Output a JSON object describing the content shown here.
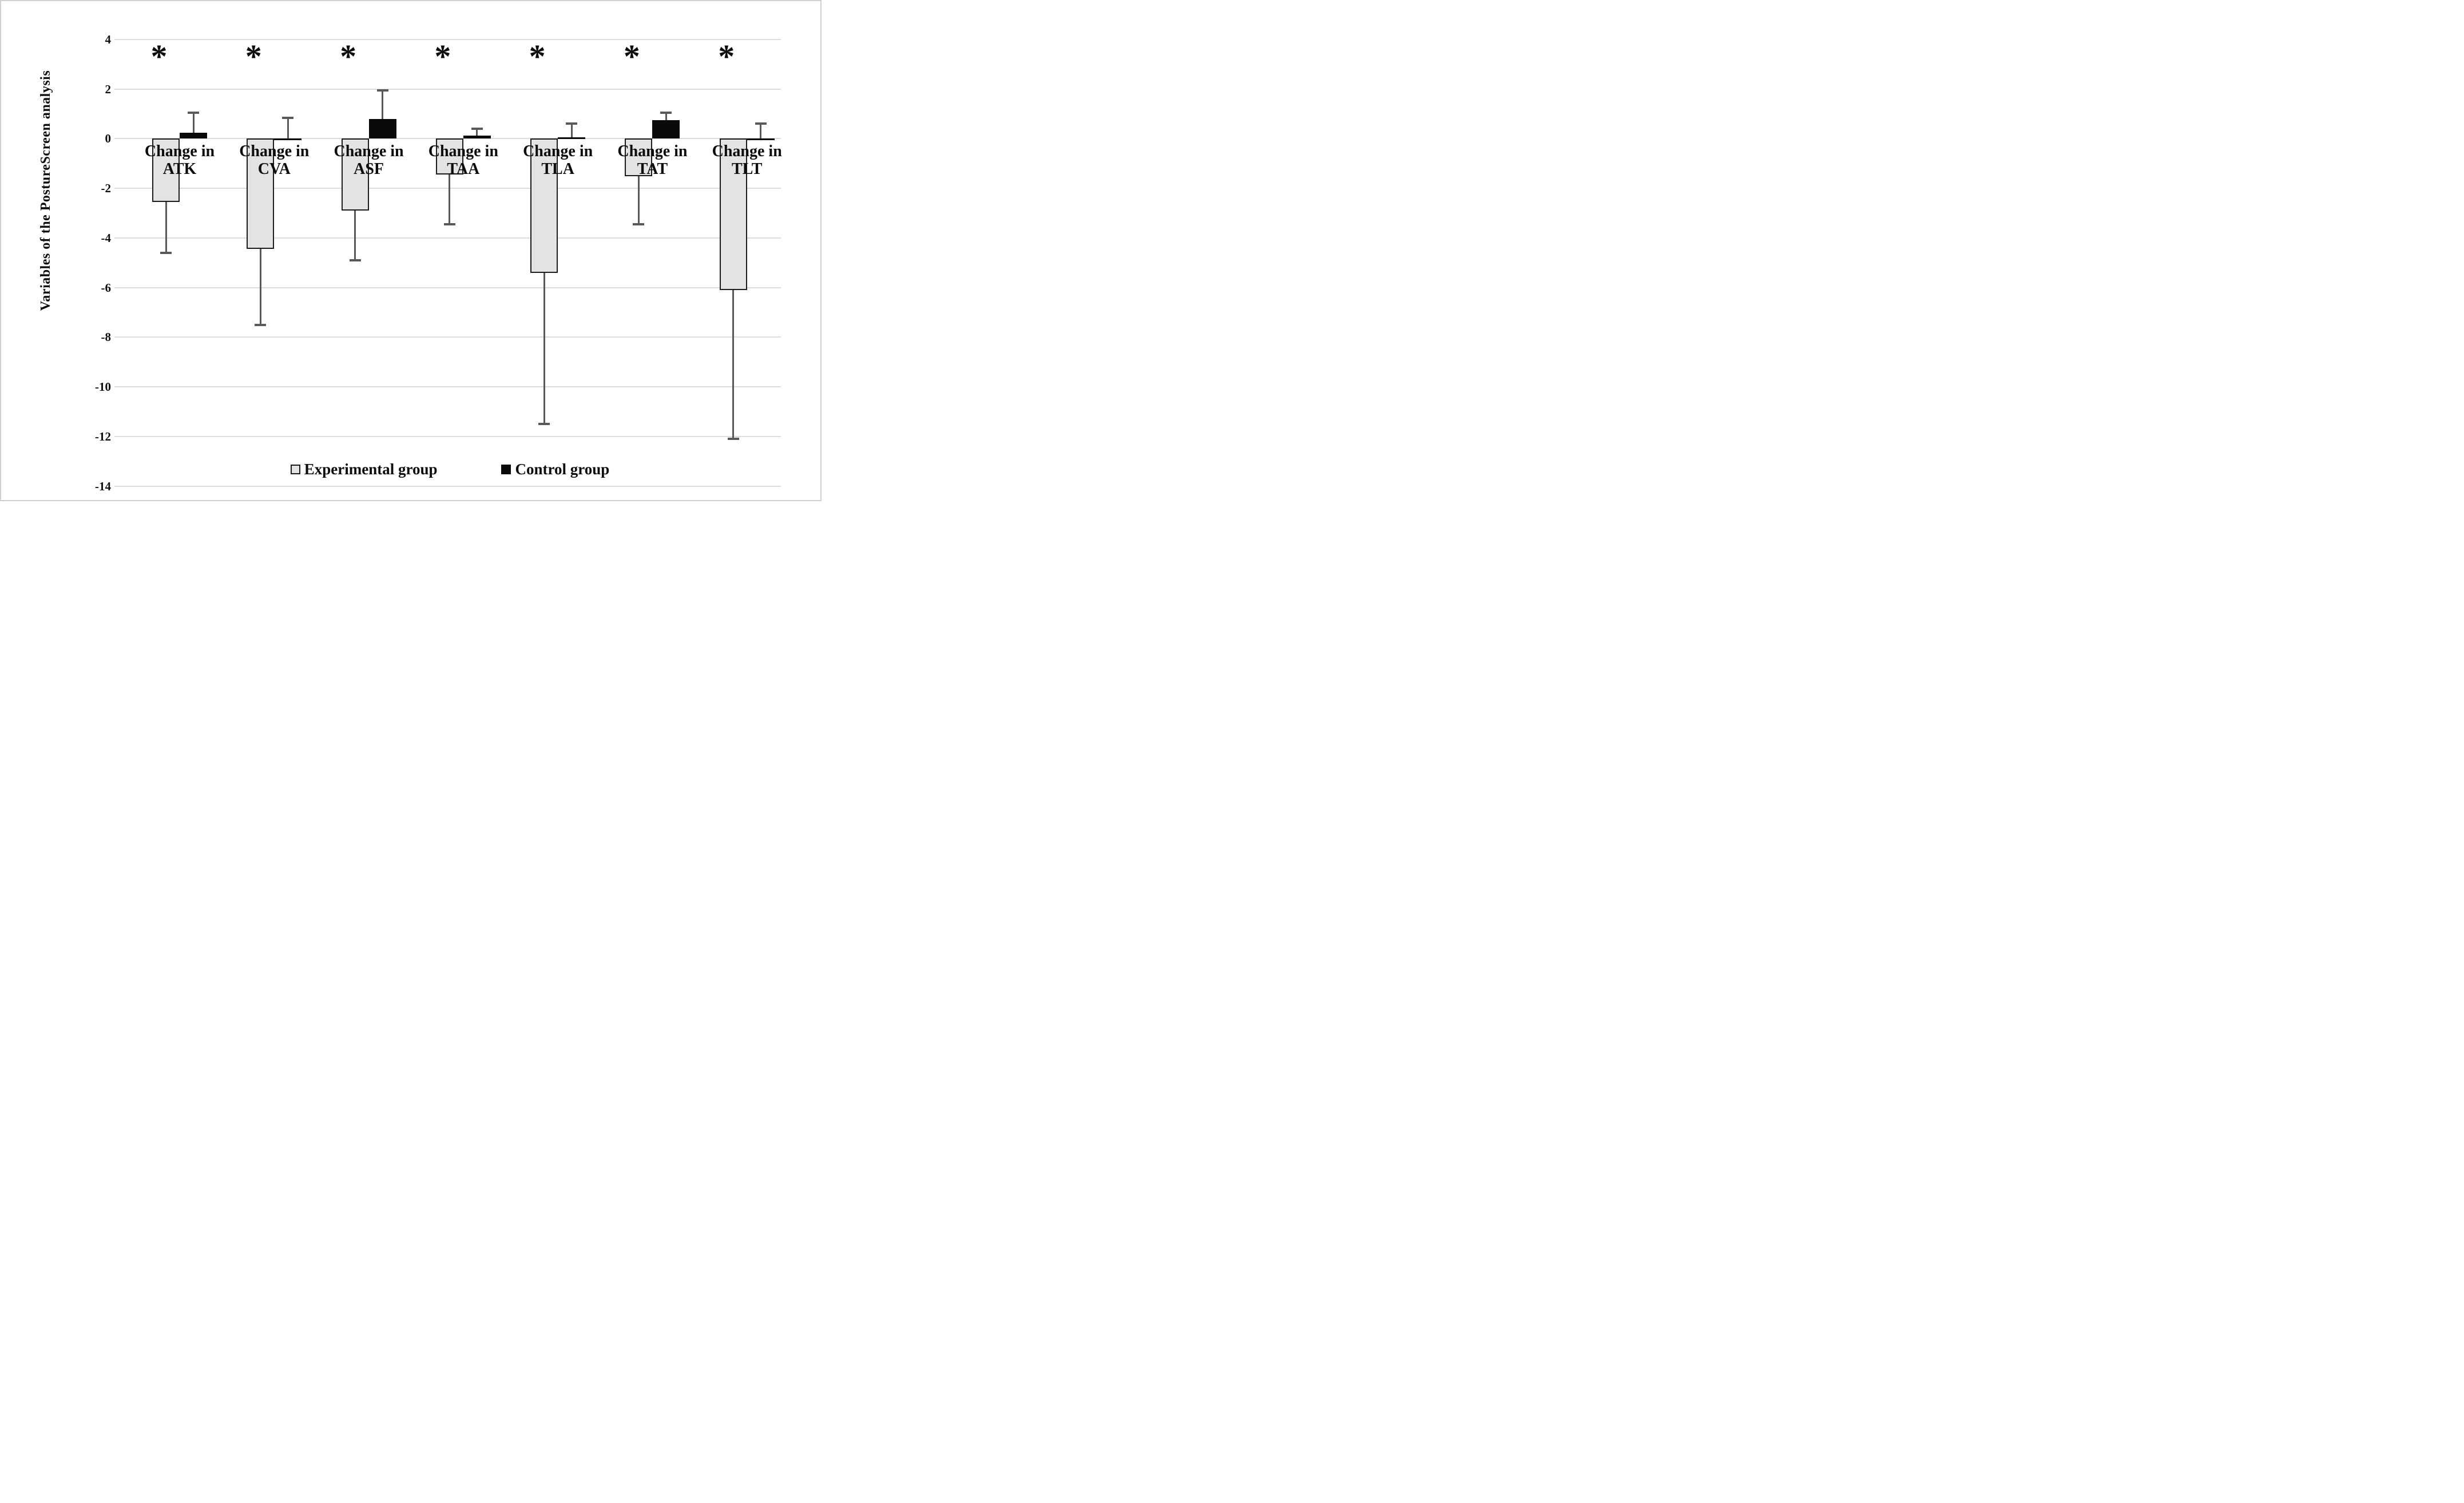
{
  "figure": {
    "ylabel": "Variables of the PostureScreen analysis"
  },
  "legend": {
    "experimental_label": "Experimental group",
    "control_label": "Control group"
  },
  "significance_marker": "*",
  "colors": {
    "experimental_fill": "#e3e3e3",
    "experimental_border": "#1c1c1c",
    "control_fill": "#0a0a0a",
    "error_bar": "#595959",
    "gridline": "#dcdcdc",
    "text": "#0d0d0d",
    "frame": "#cfcfcf"
  },
  "chart_data": {
    "type": "bar",
    "title": "",
    "xlabel": "",
    "ylabel": "Variables of the PostureScreen analysis",
    "ylim": [
      -14,
      4
    ],
    "yticks": [
      4,
      2,
      0,
      -2,
      -4,
      -6,
      -8,
      -10,
      -12,
      -14
    ],
    "grid": true,
    "legend_position": "bottom-inside",
    "categories": [
      {
        "label": "Change in ATK",
        "line1": "Change in",
        "line2": "ATK"
      },
      {
        "label": "Change in CVA",
        "line1": "Change in",
        "line2": "CVA"
      },
      {
        "label": "Change in ASF",
        "line1": "Change in",
        "line2": "ASF"
      },
      {
        "label": "Change in TAA",
        "line1": "Change in",
        "line2": "TAA"
      },
      {
        "label": "Change in TLA",
        "line1": "Change in",
        "line2": "TLA"
      },
      {
        "label": "Change in TAT",
        "line1": "Change in",
        "line2": "TAT"
      },
      {
        "label": "Change in TLT",
        "line1": "Change in",
        "line2": "TLT"
      }
    ],
    "series": [
      {
        "name": "Experimental group",
        "values": [
          -2.55,
          -4.45,
          -2.9,
          -1.45,
          -5.4,
          -1.5,
          -6.1
        ],
        "error_to": [
          -4.6,
          -7.5,
          -4.9,
          -3.45,
          -11.5,
          -3.45,
          -12.1
        ]
      },
      {
        "name": "Control group",
        "values": [
          0.25,
          -0.05,
          0.8,
          0.12,
          0.05,
          0.75,
          -0.05
        ],
        "error_to": [
          1.05,
          0.85,
          1.95,
          0.4,
          0.6,
          1.05,
          0.6
        ]
      }
    ],
    "significant_groups": [
      true,
      true,
      true,
      true,
      true,
      true,
      true
    ]
  }
}
